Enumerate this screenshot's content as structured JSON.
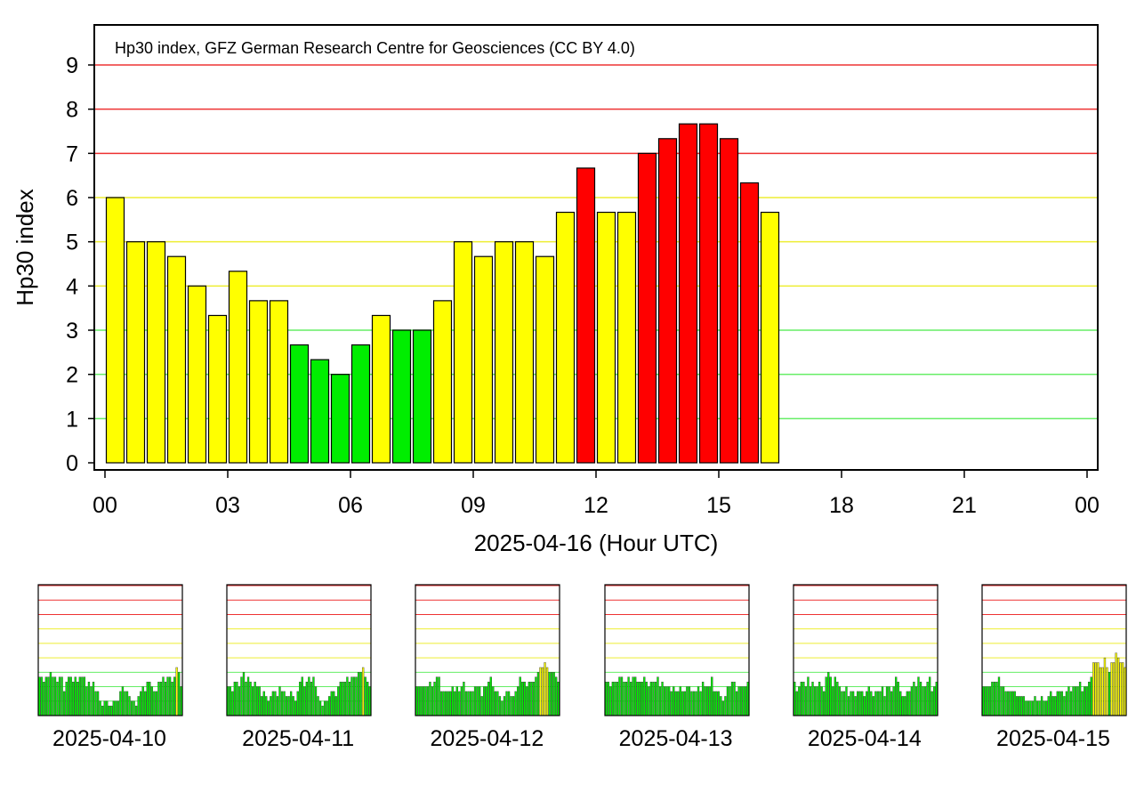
{
  "colors": {
    "quiet": "#00ee00",
    "moderate": "#ffff00",
    "storm": "#ff0000",
    "storm_dark": "#cc0000",
    "line_green": "#66ee66",
    "line_yellow": "#eeee33",
    "line_red": "#ee3333",
    "axis": "#000000"
  },
  "chart_data": {
    "type": "bar",
    "title": "Hp30 index, GFZ German Research Centre for Geosciences (CC BY 4.0)",
    "ylabel": "Hp30 index",
    "xlabel": "2025-04-16 (Hour UTC)",
    "ylim": [
      0,
      9
    ],
    "yticks": [
      "0",
      "1",
      "2",
      "3",
      "4",
      "5",
      "6",
      "7",
      "8",
      "9"
    ],
    "xlim_hours": [
      0,
      24
    ],
    "xticks": [
      "00",
      "03",
      "06",
      "09",
      "12",
      "15",
      "18",
      "21",
      "00"
    ],
    "color_thresholds": {
      "quiet_max": 3,
      "moderate_max": 6
    },
    "reference_lines": [
      1,
      2,
      3,
      4,
      5,
      6,
      7,
      8,
      9
    ],
    "interval_hours": 0.5,
    "values": [
      6.0,
      5.0,
      5.0,
      4.667,
      4.0,
      3.333,
      4.333,
      3.667,
      3.667,
      2.667,
      2.333,
      2.0,
      2.667,
      3.333,
      3.0,
      3.0,
      3.667,
      5.0,
      4.667,
      5.0,
      5.0,
      4.667,
      5.667,
      6.667,
      5.667,
      5.667,
      7.0,
      7.333,
      7.667,
      7.667,
      7.333,
      6.333,
      5.667
    ],
    "previous_days": [
      {
        "date": "2025-04-10",
        "values": [
          2.67,
          2.67,
          2.33,
          2.67,
          2.67,
          3.0,
          2.67,
          2.67,
          2.33,
          2.67,
          2.67,
          1.67,
          2.33,
          2.67,
          2.67,
          2.33,
          2.67,
          2.33,
          2.67,
          2.67,
          2.67,
          2.0,
          2.33,
          2.0,
          2.33,
          1.67,
          1.67,
          1.0,
          0.67,
          1.0,
          1.0,
          0.67,
          0.67,
          1.0,
          1.0,
          1.0,
          1.67,
          2.0,
          1.67,
          1.67,
          1.33,
          1.0,
          1.0,
          0.67,
          1.33,
          1.67,
          2.0,
          1.67,
          2.33,
          2.33,
          2.0,
          1.67,
          1.67,
          2.33,
          2.33,
          2.67,
          2.33,
          2.67,
          2.67,
          2.33,
          2.67,
          3.33,
          3.0,
          2.0
        ]
      },
      {
        "date": "2025-04-11",
        "values": [
          2.0,
          2.0,
          1.67,
          2.33,
          2.33,
          2.0,
          2.67,
          3.0,
          2.33,
          2.67,
          2.33,
          2.0,
          2.33,
          2.0,
          2.0,
          1.33,
          1.67,
          1.33,
          1.0,
          1.33,
          1.67,
          1.67,
          1.33,
          2.0,
          1.67,
          1.67,
          1.33,
          1.33,
          1.67,
          1.33,
          1.0,
          1.67,
          2.33,
          2.67,
          2.0,
          2.33,
          2.67,
          2.33,
          2.67,
          2.0,
          1.33,
          1.0,
          0.67,
          1.0,
          1.0,
          1.33,
          1.67,
          1.67,
          1.33,
          2.0,
          2.33,
          2.33,
          2.33,
          2.67,
          2.33,
          2.67,
          2.67,
          2.67,
          3.0,
          3.0,
          3.33,
          2.67,
          2.33,
          2.0
        ]
      },
      {
        "date": "2025-04-12",
        "values": [
          2.0,
          2.0,
          2.0,
          2.0,
          2.0,
          2.0,
          2.33,
          2.0,
          2.33,
          2.67,
          2.67,
          1.67,
          1.67,
          1.67,
          1.67,
          1.67,
          2.0,
          1.67,
          2.0,
          1.67,
          2.0,
          2.33,
          1.67,
          1.67,
          1.67,
          1.67,
          2.0,
          2.0,
          2.0,
          1.33,
          2.0,
          2.0,
          2.33,
          2.67,
          2.0,
          1.67,
          1.67,
          1.33,
          1.0,
          1.33,
          1.67,
          1.67,
          1.33,
          1.33,
          1.67,
          2.0,
          2.67,
          2.33,
          2.33,
          2.0,
          2.33,
          2.33,
          2.33,
          2.67,
          3.0,
          3.33,
          3.33,
          3.67,
          3.33,
          3.0,
          3.0,
          3.0,
          2.67,
          2.33
        ]
      },
      {
        "date": "2025-04-13",
        "values": [
          2.33,
          2.33,
          2.0,
          2.33,
          2.33,
          2.33,
          2.67,
          2.67,
          2.33,
          2.33,
          2.67,
          2.33,
          2.67,
          2.67,
          2.33,
          2.33,
          2.33,
          2.67,
          2.33,
          2.0,
          2.33,
          2.33,
          2.33,
          2.67,
          2.0,
          2.33,
          2.0,
          2.0,
          2.0,
          1.67,
          2.0,
          1.67,
          1.67,
          2.0,
          1.67,
          1.67,
          2.0,
          2.0,
          1.67,
          1.67,
          1.67,
          2.0,
          1.67,
          2.33,
          2.0,
          2.0,
          2.0,
          2.67,
          1.67,
          1.67,
          1.67,
          1.33,
          1.0,
          1.33,
          2.0,
          2.0,
          2.33,
          2.33,
          1.67,
          2.0,
          2.0,
          2.0,
          2.0,
          2.33
        ]
      },
      {
        "date": "2025-04-14",
        "values": [
          2.33,
          1.67,
          2.0,
          2.33,
          2.33,
          2.0,
          2.67,
          2.0,
          2.33,
          2.0,
          2.0,
          2.33,
          2.0,
          1.67,
          2.67,
          3.0,
          2.67,
          2.0,
          2.67,
          2.33,
          2.0,
          1.67,
          1.67,
          2.0,
          1.33,
          1.67,
          1.67,
          1.33,
          1.67,
          1.67,
          1.67,
          1.33,
          1.67,
          2.0,
          1.67,
          1.33,
          1.67,
          1.67,
          1.67,
          2.0,
          1.33,
          2.0,
          2.0,
          1.67,
          2.0,
          2.67,
          2.33,
          1.67,
          1.33,
          1.33,
          1.67,
          1.67,
          2.0,
          2.33,
          2.0,
          2.67,
          2.33,
          2.0,
          2.0,
          2.33,
          2.67,
          1.67,
          2.0,
          2.33
        ]
      },
      {
        "date": "2025-04-15",
        "values": [
          2.0,
          2.0,
          2.0,
          2.0,
          2.33,
          2.33,
          2.33,
          2.67,
          2.0,
          2.0,
          1.67,
          1.67,
          1.67,
          1.67,
          1.67,
          1.33,
          1.33,
          1.33,
          1.33,
          1.0,
          1.0,
          1.0,
          1.0,
          1.33,
          1.0,
          1.0,
          1.33,
          1.0,
          1.0,
          1.33,
          1.67,
          1.33,
          1.33,
          1.67,
          1.67,
          1.67,
          1.33,
          1.67,
          2.0,
          1.67,
          2.0,
          2.0,
          2.0,
          2.33,
          1.67,
          2.0,
          2.0,
          2.33,
          2.67,
          3.67,
          3.67,
          3.67,
          3.33,
          3.33,
          4.0,
          3.33,
          3.0,
          3.67,
          3.67,
          4.33,
          4.0,
          3.67,
          3.67,
          3.33
        ]
      }
    ]
  }
}
